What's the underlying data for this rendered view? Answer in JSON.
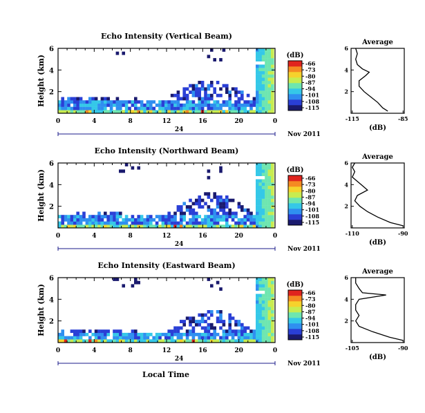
{
  "colors": {
    "scale": [
      "#1a1a6e",
      "#2a3fd6",
      "#2f8ff0",
      "#35c8e8",
      "#6ee6b0",
      "#c8ec50",
      "#f6d22c",
      "#f58a22",
      "#e0241e"
    ]
  },
  "chart_data": [
    {
      "type": "heatmap",
      "title": "Echo Intensity (Vertical Beam)",
      "ylabel": "Height (km)",
      "xlabel": "",
      "xticks": [
        "0",
        "4",
        "8",
        "12",
        "16",
        "20",
        "0"
      ],
      "xlim": [
        0,
        24
      ],
      "yticks": [
        "2",
        "4",
        "6"
      ],
      "ylim": [
        0,
        6
      ],
      "date_left": "24",
      "date_right": "Nov 2011",
      "colorbar": {
        "label": "(dB)",
        "ticks": [
          "-66",
          "-73",
          "-80",
          "-87",
          "-94",
          "-101",
          "-108",
          "-115"
        ]
      },
      "average": {
        "title": "Average",
        "xlabel": "(dB)",
        "xticks": [
          "-115",
          "-85"
        ],
        "yticks": [
          "2",
          "4",
          "6"
        ],
        "profile": [
          [
            -94,
            0.2
          ],
          [
            -97,
            0.5
          ],
          [
            -100,
            1.0
          ],
          [
            -104,
            1.5
          ],
          [
            -108,
            2.0
          ],
          [
            -111,
            2.5
          ],
          [
            -111,
            3.0
          ],
          [
            -107,
            3.5
          ],
          [
            -105,
            3.8
          ],
          [
            -109,
            4.1
          ],
          [
            -112,
            4.5
          ],
          [
            -113,
            5.0
          ],
          [
            -112,
            5.5
          ],
          [
            -113,
            6.0
          ]
        ]
      },
      "echo": {
        "base_top": 1.3,
        "layer_top": 3.0,
        "high_clutter_start": 6.0,
        "wall_start": 22.0
      }
    },
    {
      "type": "heatmap",
      "title": "Echo Intensity (Northward Beam)",
      "ylabel": "Height (km)",
      "xlabel": "",
      "xticks": [
        "0",
        "4",
        "8",
        "12",
        "16",
        "20",
        "0"
      ],
      "xlim": [
        0,
        24
      ],
      "yticks": [
        "2",
        "4",
        "6"
      ],
      "ylim": [
        0,
        6
      ],
      "date_left": "24",
      "date_right": "Nov 2011",
      "colorbar": {
        "label": "(dB)",
        "ticks": [
          "-66",
          "-73",
          "-80",
          "-87",
          "-94",
          "-101",
          "-108",
          "-115"
        ]
      },
      "average": {
        "title": "Average",
        "xlabel": "(dB)",
        "xticks": [
          "-110",
          "-90"
        ],
        "yticks": [
          "2",
          "4",
          "6"
        ],
        "profile": [
          [
            -90,
            0.2
          ],
          [
            -95,
            0.5
          ],
          [
            -100,
            1.0
          ],
          [
            -104,
            1.5
          ],
          [
            -107,
            2.0
          ],
          [
            -109,
            2.5
          ],
          [
            -108,
            3.0
          ],
          [
            -104,
            3.5
          ],
          [
            -106,
            3.9
          ],
          [
            -108,
            4.3
          ],
          [
            -110,
            4.7
          ],
          [
            -109,
            5.2
          ],
          [
            -110,
            5.6
          ],
          [
            -109,
            6.0
          ]
        ]
      },
      "echo": {
        "base_top": 1.2,
        "layer_top": 3.2,
        "high_clutter_start": 6.0,
        "wall_start": 22.0
      }
    },
    {
      "type": "heatmap",
      "title": "Echo Intensity (Eastward Beam)",
      "ylabel": "Height (km)",
      "xlabel": "Local Time",
      "xticks": [
        "0",
        "4",
        "8",
        "12",
        "16",
        "20",
        "0"
      ],
      "xlim": [
        0,
        24
      ],
      "yticks": [
        "2",
        "4",
        "6"
      ],
      "ylim": [
        0,
        6
      ],
      "date_left": "24",
      "date_right": "Nov 2011",
      "colorbar": {
        "label": "(dB)",
        "ticks": [
          "-66",
          "-73",
          "-80",
          "-87",
          "-94",
          "-101",
          "-108",
          "-115"
        ]
      },
      "average": {
        "title": "Average",
        "xlabel": "(dB)",
        "xticks": [
          "-105",
          "-90"
        ],
        "yticks": [
          "2",
          "4",
          "6"
        ],
        "profile": [
          [
            -90,
            0.2
          ],
          [
            -94,
            0.5
          ],
          [
            -99,
            1.0
          ],
          [
            -103,
            1.5
          ],
          [
            -104,
            2.0
          ],
          [
            -103,
            2.5
          ],
          [
            -104,
            3.0
          ],
          [
            -104,
            3.5
          ],
          [
            -103,
            4.0
          ],
          [
            -95,
            4.4
          ],
          [
            -102,
            4.6
          ],
          [
            -103,
            5.0
          ],
          [
            -104,
            5.5
          ],
          [
            -104,
            6.0
          ]
        ]
      },
      "echo": {
        "base_top": 1.0,
        "layer_top": 3.0,
        "high_clutter_start": 6.0,
        "wall_start": 22.0
      }
    }
  ]
}
